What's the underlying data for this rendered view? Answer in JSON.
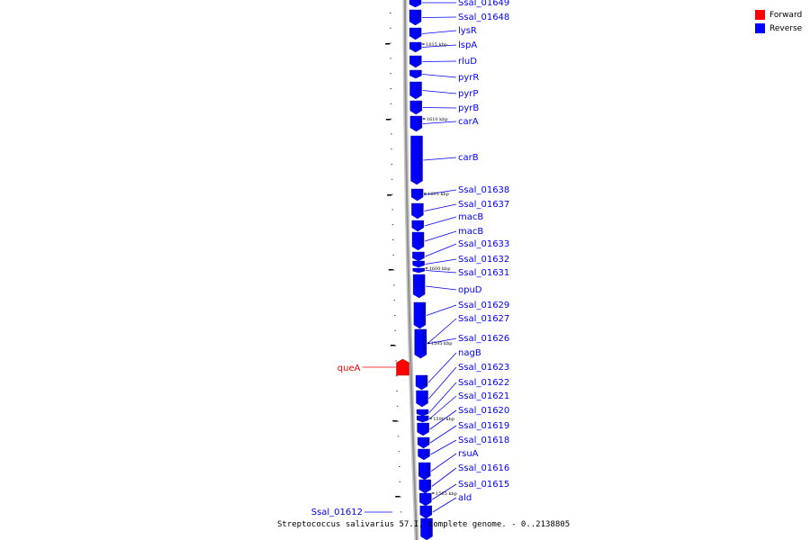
{
  "caption": "Streptococcus salivarius 57.I, complete genome. - 0..2138805",
  "legend": {
    "placement": "top-right",
    "items": [
      {
        "label": "Forward",
        "color": "#ff0000"
      },
      {
        "label": "Reverse",
        "color": "#0000ff"
      }
    ]
  },
  "colors": {
    "forward": "#ff0000",
    "reverse": "#0000ff",
    "backbone": "#909090"
  },
  "axis": {
    "unit": "kbp",
    "kbp_ticks": [
      "1585 kbp",
      "1590 kbp",
      "1595 kbp",
      "1600 kbp",
      "1605 kbp",
      "1610 kbp",
      "1615 kbp"
    ]
  },
  "genes": [
    {
      "name": "Ssal_01649",
      "strand": "reverse"
    },
    {
      "name": "Ssal_01648",
      "strand": "reverse"
    },
    {
      "name": "lysR",
      "strand": "reverse"
    },
    {
      "name": "lspA",
      "strand": "reverse"
    },
    {
      "name": "rluD",
      "strand": "reverse"
    },
    {
      "name": "pyrR",
      "strand": "reverse"
    },
    {
      "name": "pyrP",
      "strand": "reverse"
    },
    {
      "name": "pyrB",
      "strand": "reverse"
    },
    {
      "name": "carA",
      "strand": "reverse"
    },
    {
      "name": "carB",
      "strand": "reverse"
    },
    {
      "name": "Ssal_01638",
      "strand": "reverse"
    },
    {
      "name": "Ssal_01637",
      "strand": "reverse"
    },
    {
      "name": "macB",
      "strand": "reverse"
    },
    {
      "name": "macB",
      "strand": "reverse"
    },
    {
      "name": "Ssal_01633",
      "strand": "reverse"
    },
    {
      "name": "Ssal_01632",
      "strand": "reverse"
    },
    {
      "name": "Ssal_01631",
      "strand": "reverse"
    },
    {
      "name": "opuD",
      "strand": "reverse"
    },
    {
      "name": "Ssal_01629",
      "strand": "reverse"
    },
    {
      "name": "Ssal_01627",
      "strand": "reverse"
    },
    {
      "name": "Ssal_01626",
      "strand": "reverse"
    },
    {
      "name": "queA",
      "strand": "forward"
    },
    {
      "name": "nagB",
      "strand": "reverse"
    },
    {
      "name": "Ssal_01623",
      "strand": "reverse"
    },
    {
      "name": "Ssal_01622",
      "strand": "reverse"
    },
    {
      "name": "Ssal_01621",
      "strand": "reverse"
    },
    {
      "name": "Ssal_01620",
      "strand": "reverse"
    },
    {
      "name": "Ssal_01619",
      "strand": "reverse"
    },
    {
      "name": "Ssal_01618",
      "strand": "reverse"
    },
    {
      "name": "rsuA",
      "strand": "reverse"
    },
    {
      "name": "Ssal_01616",
      "strand": "reverse"
    },
    {
      "name": "Ssal_01615",
      "strand": "reverse"
    },
    {
      "name": "ald",
      "strand": "reverse"
    },
    {
      "name": "Ssal_01612",
      "strand": "reverse"
    }
  ]
}
